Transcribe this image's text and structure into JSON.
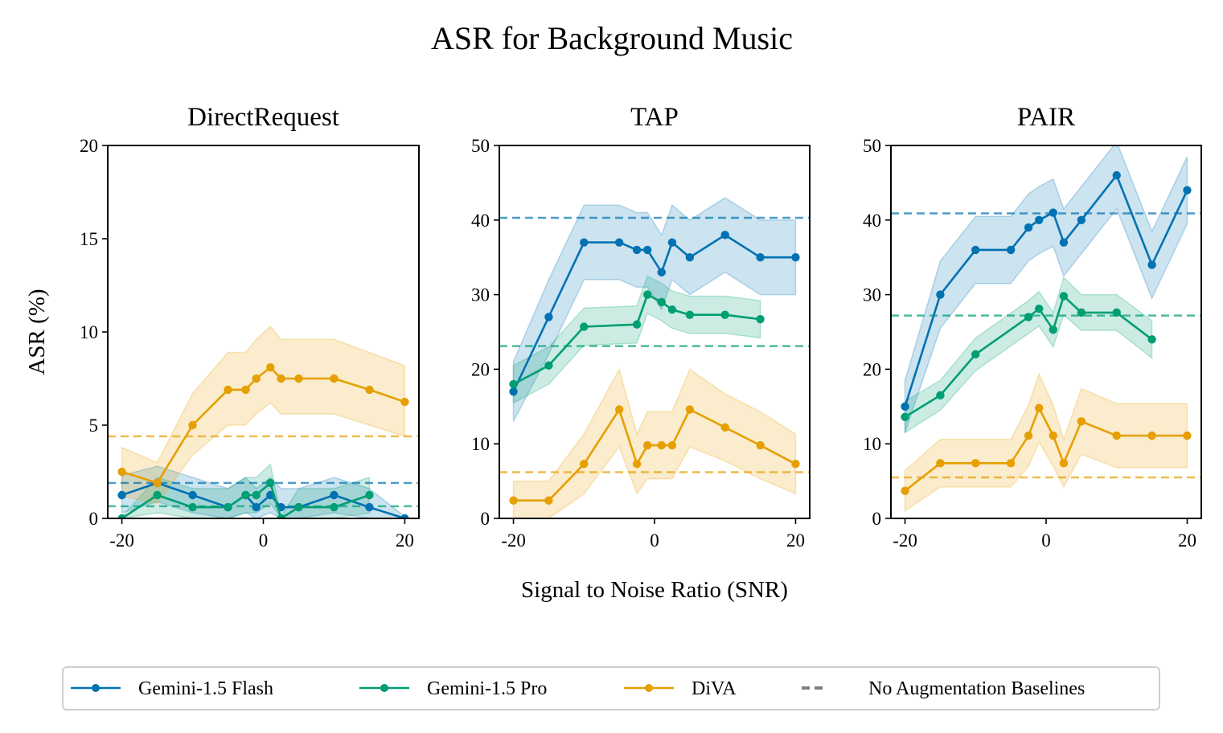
{
  "figure_title": "ASR for Background Music",
  "colors": {
    "Gemini-1.5 Flash": "#0072B2",
    "Gemini-1.5 Pro": "#009E73",
    "DiVA": "#E69F00",
    "baseline_legend": "#808080"
  },
  "legend": [
    {
      "label": "Gemini-1.5 Flash",
      "style": "line-marker"
    },
    {
      "label": "Gemini-1.5 Pro",
      "style": "line-marker"
    },
    {
      "label": "DiVA",
      "style": "line-marker"
    },
    {
      "label": "No Augmentation Baselines",
      "style": "dashed"
    }
  ],
  "chart_data": [
    {
      "type": "line",
      "title": "DirectRequest",
      "xlabel": "",
      "ylabel": "ASR (%)",
      "xlim": [
        -22,
        22
      ],
      "ylim": [
        0,
        20
      ],
      "xticks": [
        -20,
        0,
        20
      ],
      "yticks": [
        0,
        5,
        10,
        15,
        20
      ],
      "series": [
        {
          "name": "Gemini-1.5 Flash",
          "baseline": 1.9,
          "x": [
            -20,
            -15,
            -10,
            -5,
            -2.5,
            -1,
            1,
            2.5,
            5,
            10,
            15,
            20
          ],
          "y": [
            1.25,
            1.9,
            1.25,
            0.6,
            1.25,
            0.6,
            1.25,
            0.6,
            0.6,
            1.25,
            0.6,
            0
          ],
          "lo": [
            0.3,
            0.9,
            0.3,
            0,
            0.3,
            0,
            0.3,
            0,
            0,
            0.3,
            0,
            0
          ],
          "hi": [
            2.3,
            2.8,
            2.2,
            1.6,
            2.2,
            1.6,
            2.2,
            1.6,
            1.6,
            2.2,
            1.6,
            0.1
          ]
        },
        {
          "name": "Gemini-1.5 Pro",
          "baseline": 0.65,
          "x": [
            -20,
            -15,
            -10,
            -5,
            -2.5,
            -1,
            1,
            2.5,
            5,
            10,
            15
          ],
          "y": [
            0,
            1.25,
            0.6,
            0.6,
            1.25,
            1.25,
            1.9,
            0,
            0.6,
            0.6,
            1.25
          ],
          "lo": [
            0,
            0.3,
            0,
            0,
            0.3,
            0.3,
            0.8,
            0,
            0,
            0,
            0.3
          ],
          "hi": [
            0.1,
            2.2,
            1.6,
            1.6,
            2.2,
            2.2,
            2.9,
            0.1,
            1.6,
            1.6,
            2.2
          ]
        },
        {
          "name": "DiVA",
          "baseline": 4.4,
          "x": [
            -20,
            -15,
            -10,
            -5,
            -2.5,
            -1,
            1,
            2.5,
            5,
            10,
            15,
            20
          ],
          "y": [
            2.5,
            1.9,
            5.0,
            6.9,
            6.9,
            7.5,
            8.1,
            7.5,
            7.5,
            7.5,
            6.9,
            6.25
          ],
          "lo": [
            1.2,
            0.8,
            3.4,
            5.0,
            5.0,
            5.6,
            6.2,
            5.6,
            5.6,
            5.6,
            5.0,
            4.4
          ],
          "hi": [
            3.8,
            3.0,
            6.7,
            8.9,
            8.9,
            9.6,
            10.3,
            9.6,
            9.6,
            9.6,
            8.9,
            8.2
          ]
        }
      ]
    },
    {
      "type": "line",
      "title": "TAP",
      "xlabel": "Signal to Noise Ratio (SNR)",
      "ylabel": "",
      "xlim": [
        -22,
        22
      ],
      "ylim": [
        0,
        50
      ],
      "xticks": [
        -20,
        0,
        20
      ],
      "yticks": [
        0,
        10,
        20,
        30,
        40,
        50
      ],
      "series": [
        {
          "name": "Gemini-1.5 Flash",
          "baseline": 40.3,
          "x": [
            -20,
            -15,
            -10,
            -5,
            -2.5,
            -1,
            1,
            2.5,
            5,
            10,
            15,
            20
          ],
          "y": [
            17,
            27,
            37,
            37,
            36,
            36,
            33,
            37,
            35,
            38,
            35,
            35
          ],
          "lo": [
            13,
            22,
            32,
            32,
            31,
            31,
            28,
            32,
            30,
            33,
            30,
            30
          ],
          "hi": [
            21,
            32,
            42,
            42,
            41,
            41,
            38,
            42,
            40,
            43,
            40,
            40
          ]
        },
        {
          "name": "Gemini-1.5 Pro",
          "baseline": 23.1,
          "x": [
            -20,
            -15,
            -10,
            -2.5,
            -1,
            1,
            2.5,
            5,
            10,
            15
          ],
          "y": [
            18,
            20.5,
            25.7,
            26,
            30,
            29,
            28,
            27.3,
            27.3,
            26.7
          ],
          "lo": [
            15.5,
            18,
            23.2,
            23.5,
            27.5,
            26.5,
            25.5,
            24.8,
            24.8,
            24.2
          ],
          "hi": [
            20.5,
            23,
            28.2,
            28.5,
            32.5,
            31.5,
            30.5,
            29.8,
            29.8,
            29.2
          ]
        },
        {
          "name": "DiVA",
          "baseline": 6.2,
          "x": [
            -20,
            -15,
            -10,
            -5,
            -2.5,
            -1,
            1,
            2.5,
            5,
            10,
            15,
            20
          ],
          "y": [
            2.4,
            2.4,
            7.3,
            14.6,
            7.3,
            9.8,
            9.8,
            9.8,
            14.6,
            12.2,
            9.8,
            7.3
          ],
          "lo": [
            0,
            0,
            3.3,
            9.6,
            3.3,
            5.3,
            5.3,
            5.3,
            9.6,
            7.7,
            5.3,
            3.3
          ],
          "hi": [
            5,
            5,
            11.3,
            20,
            11.3,
            14.3,
            14.3,
            14.3,
            20,
            16.7,
            14.3,
            11.3
          ]
        }
      ]
    },
    {
      "type": "line",
      "title": "PAIR",
      "xlabel": "",
      "ylabel": "",
      "xlim": [
        -22,
        22
      ],
      "ylim": [
        0,
        50
      ],
      "xticks": [
        -20,
        0,
        20
      ],
      "yticks": [
        0,
        10,
        20,
        30,
        40,
        50
      ],
      "series": [
        {
          "name": "Gemini-1.5 Flash",
          "baseline": 40.9,
          "x": [
            -20,
            -15,
            -10,
            -5,
            -2.5,
            -1,
            1,
            2.5,
            5,
            10,
            15,
            20
          ],
          "y": [
            15,
            30,
            36,
            36,
            39,
            40,
            41,
            37,
            40,
            46,
            34,
            44
          ],
          "lo": [
            11.5,
            25.5,
            31.5,
            31.5,
            34.5,
            35.5,
            36.5,
            32.5,
            35.5,
            41.5,
            29.5,
            39.5
          ],
          "hi": [
            18.5,
            34.5,
            40.5,
            40.5,
            43.5,
            44.5,
            45.5,
            41.5,
            44.5,
            50.5,
            38.5,
            48.5
          ]
        },
        {
          "name": "Gemini-1.5 Pro",
          "baseline": 27.2,
          "x": [
            -20,
            -15,
            -10,
            -2.5,
            -1,
            1,
            2.5,
            5,
            10,
            15
          ],
          "y": [
            13.6,
            16.5,
            22,
            27,
            28.1,
            25.3,
            29.8,
            27.6,
            27.6,
            24
          ],
          "lo": [
            11.5,
            14.5,
            19.8,
            24.8,
            25.8,
            23,
            27.3,
            25.2,
            25.2,
            21.5
          ],
          "hi": [
            15.7,
            18.5,
            24.2,
            29.2,
            30.4,
            27.6,
            32.3,
            30,
            30,
            26.5
          ]
        },
        {
          "name": "DiVA",
          "baseline": 5.5,
          "x": [
            -20,
            -15,
            -10,
            -5,
            -2.5,
            -1,
            1,
            2.5,
            5,
            10,
            15,
            20
          ],
          "y": [
            3.7,
            7.4,
            7.4,
            7.4,
            11.1,
            14.8,
            11.1,
            7.4,
            13,
            11.1,
            11.1,
            11.1
          ],
          "lo": [
            1,
            4.2,
            4.2,
            4.2,
            7,
            10.2,
            7,
            4.2,
            8.6,
            6.8,
            6.8,
            6.8
          ],
          "hi": [
            6.4,
            10.6,
            10.6,
            10.6,
            15.2,
            19.4,
            15.2,
            10.6,
            17.4,
            15.4,
            15.4,
            15.4
          ]
        }
      ]
    }
  ]
}
